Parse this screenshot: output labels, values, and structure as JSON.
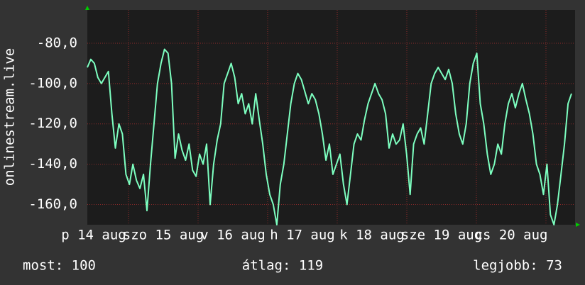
{
  "chart_data": {
    "type": "line",
    "ylabel": "onlinestream.live",
    "xlabels": [
      "p 14 aug",
      "szo 15 aug",
      "v 16 aug",
      "h 17 aug",
      "k 18 aug",
      "sze 19 aug",
      "cs 20 aug"
    ],
    "series": [
      {
        "name": "onlinestream.live",
        "color": "#7dffc0",
        "values": [
          -92,
          -88,
          -90,
          -97,
          -100,
          -97,
          -94,
          -115,
          -132,
          -120,
          -125,
          -145,
          -150,
          -140,
          -148,
          -152,
          -145,
          -163,
          -140,
          -120,
          -100,
          -90,
          -83,
          -85,
          -100,
          -137,
          -125,
          -133,
          -138,
          -130,
          -143,
          -146,
          -135,
          -140,
          -130,
          -160,
          -140,
          -128,
          -120,
          -100,
          -95,
          -90,
          -97,
          -110,
          -105,
          -115,
          -110,
          -120,
          -105,
          -118,
          -130,
          -145,
          -155,
          -160,
          -170,
          -150,
          -140,
          -125,
          -110,
          -100,
          -95,
          -98,
          -104,
          -110,
          -105,
          -108,
          -115,
          -125,
          -138,
          -130,
          -145,
          -140,
          -135,
          -150,
          -160,
          -145,
          -130,
          -125,
          -128,
          -118,
          -110,
          -105,
          -100,
          -105,
          -108,
          -115,
          -132,
          -125,
          -130,
          -128,
          -120,
          -135,
          -155,
          -130,
          -125,
          -122,
          -130,
          -115,
          -100,
          -95,
          -92,
          -95,
          -98,
          -93,
          -100,
          -115,
          -125,
          -130,
          -120,
          -100,
          -90,
          -85,
          -110,
          -120,
          -135,
          -145,
          -140,
          -130,
          -135,
          -120,
          -110,
          -105,
          -112,
          -105,
          -100,
          -108,
          -115,
          -125,
          -140,
          -145,
          -155,
          -140,
          -165,
          -170,
          -160,
          -145,
          -130,
          -110,
          -105
        ]
      }
    ],
    "ylim": [
      -170,
      -63.5
    ],
    "yticks": [
      {
        "value": -80,
        "label": "-80,0"
      },
      {
        "value": -100,
        "label": "-100,0"
      },
      {
        "value": -120,
        "label": "-120,0"
      },
      {
        "value": -140,
        "label": "-140,0"
      },
      {
        "value": -160,
        "label": "-160,0"
      }
    ],
    "grid": true,
    "stats": [
      "most: 100",
      "átlag: 119",
      "legjobb: 73"
    ]
  }
}
